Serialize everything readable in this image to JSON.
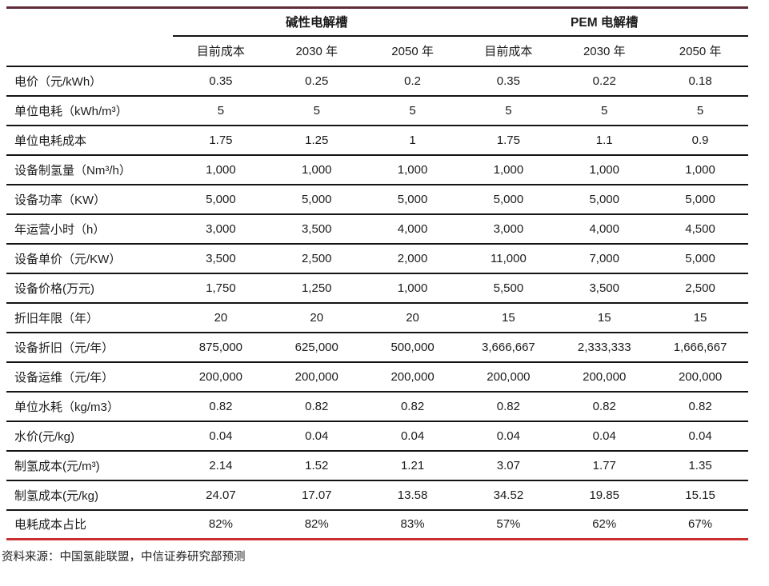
{
  "table": {
    "group_headers": [
      {
        "label": "碱性电解槽",
        "colspan": 3
      },
      {
        "label": "PEM 电解槽",
        "colspan": 3
      }
    ],
    "sub_headers": [
      "目前成本",
      "2030 年",
      "2050 年",
      "目前成本",
      "2030 年",
      "2050 年"
    ],
    "rows": [
      {
        "label": "电价（元/kWh）",
        "values": [
          "0.35",
          "0.25",
          "0.2",
          "0.35",
          "0.22",
          "0.18"
        ]
      },
      {
        "label": "单位电耗（kWh/m³）",
        "values": [
          "5",
          "5",
          "5",
          "5",
          "5",
          "5"
        ]
      },
      {
        "label": "单位电耗成本",
        "values": [
          "1.75",
          "1.25",
          "1",
          "1.75",
          "1.1",
          "0.9"
        ]
      },
      {
        "label": "设备制氢量（Nm³/h）",
        "values": [
          "1,000",
          "1,000",
          "1,000",
          "1,000",
          "1,000",
          "1,000"
        ]
      },
      {
        "label": "设备功率（KW）",
        "values": [
          "5,000",
          "5,000",
          "5,000",
          "5,000",
          "5,000",
          "5,000"
        ]
      },
      {
        "label": "年运营小时（h）",
        "values": [
          "3,000",
          "3,500",
          "4,000",
          "3,000",
          "4,000",
          "4,500"
        ]
      },
      {
        "label": "设备单价（元/KW）",
        "values": [
          "3,500",
          "2,500",
          "2,000",
          "11,000",
          "7,000",
          "5,000"
        ]
      },
      {
        "label": "设备价格(万元)",
        "values": [
          "1,750",
          "1,250",
          "1,000",
          "5,500",
          "3,500",
          "2,500"
        ]
      },
      {
        "label": "折旧年限（年）",
        "values": [
          "20",
          "20",
          "20",
          "15",
          "15",
          "15"
        ]
      },
      {
        "label": "设备折旧（元/年）",
        "values": [
          "875,000",
          "625,000",
          "500,000",
          "3,666,667",
          "2,333,333",
          "1,666,667"
        ]
      },
      {
        "label": "设备运维（元/年）",
        "values": [
          "200,000",
          "200,000",
          "200,000",
          "200,000",
          "200,000",
          "200,000"
        ]
      },
      {
        "label": "单位水耗（kg/m3）",
        "values": [
          "0.82",
          "0.82",
          "0.82",
          "0.82",
          "0.82",
          "0.82"
        ]
      },
      {
        "label": "水价(元/kg)",
        "values": [
          "0.04",
          "0.04",
          "0.04",
          "0.04",
          "0.04",
          "0.04"
        ]
      },
      {
        "label": "制氢成本(元/m³)",
        "values": [
          "2.14",
          "1.52",
          "1.21",
          "3.07",
          "1.77",
          "1.35"
        ]
      },
      {
        "label": "制氢成本(元/kg)",
        "values": [
          "24.07",
          "17.07",
          "13.58",
          "34.52",
          "19.85",
          "15.15"
        ]
      },
      {
        "label": "电耗成本占比",
        "values": [
          "82%",
          "82%",
          "83%",
          "57%",
          "62%",
          "67%"
        ]
      }
    ]
  },
  "footer": {
    "source": "资料来源：中国氢能联盟，中信证券研究部预测"
  },
  "colors": {
    "top_rule": "#5f2a36",
    "bottom_rule": "#cb2f2f",
    "line": "#141414",
    "text": "#1c1c1c"
  }
}
